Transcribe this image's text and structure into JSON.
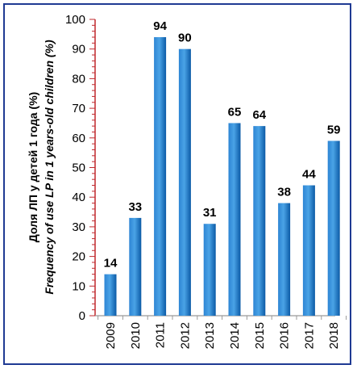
{
  "chart_data": {
    "type": "bar",
    "title": "",
    "ylabel": "Доля  ЛП у детей 1 года (%)",
    "ylabel_en": "Frequency of use LP in 1 years-old children (%)",
    "xlabel": "",
    "categories": [
      "2009",
      "2010",
      "2011",
      "2012",
      "2013",
      "2014",
      "2015",
      "2016",
      "2017",
      "2018"
    ],
    "values": [
      14,
      33,
      94,
      90,
      31,
      65,
      64,
      38,
      44,
      59
    ],
    "ylim": [
      0,
      100
    ],
    "yticks": [
      "0",
      "10",
      "20",
      "30",
      "40",
      "50",
      "60",
      "70",
      "80",
      "90",
      "100"
    ],
    "grid": false,
    "legend": "none",
    "colors": {
      "bar_light": "#3f9be0",
      "bar_dark": "#0b5aa6",
      "axis_y": "#c0282d",
      "frame": "#1f3a93"
    }
  }
}
